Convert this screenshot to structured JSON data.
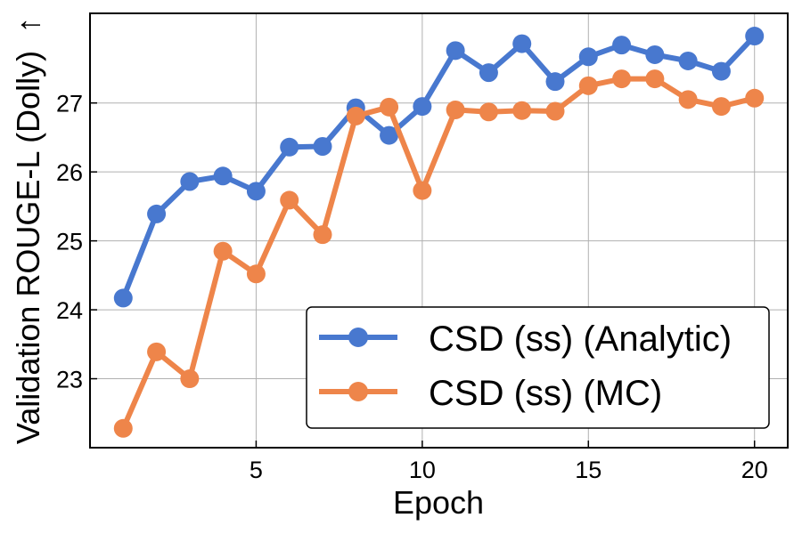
{
  "chart_data": {
    "type": "line",
    "title": "",
    "xlabel": "Epoch",
    "ylabel": "Validation ROUGE-L (Dolly)",
    "ylabel_arrow": "↑",
    "xlim": [
      0.0,
      21.0
    ],
    "ylim": [
      22.0,
      28.3
    ],
    "xticks": [
      5,
      10,
      15,
      20
    ],
    "yticks": [
      23,
      24,
      25,
      26,
      27
    ],
    "grid": true,
    "legend_position": "lower-right",
    "x": [
      1,
      2,
      3,
      4,
      5,
      6,
      7,
      8,
      9,
      10,
      11,
      12,
      13,
      14,
      15,
      16,
      17,
      18,
      19,
      20
    ],
    "series": [
      {
        "name": "CSD (ss) (Analytic)",
        "color": "#4878cf",
        "values": [
          24.17,
          25.39,
          25.86,
          25.94,
          25.72,
          26.36,
          26.37,
          26.93,
          26.53,
          26.95,
          27.76,
          27.44,
          27.86,
          27.31,
          27.67,
          27.84,
          27.7,
          27.61,
          27.46,
          27.97
        ]
      },
      {
        "name": "CSD (ss) (MC)",
        "color": "#ee854a",
        "values": [
          22.28,
          23.39,
          23.0,
          24.85,
          24.52,
          25.59,
          25.09,
          26.81,
          26.94,
          25.73,
          26.9,
          26.87,
          26.89,
          26.88,
          27.25,
          27.35,
          27.35,
          27.05,
          26.95,
          27.07
        ]
      }
    ]
  }
}
